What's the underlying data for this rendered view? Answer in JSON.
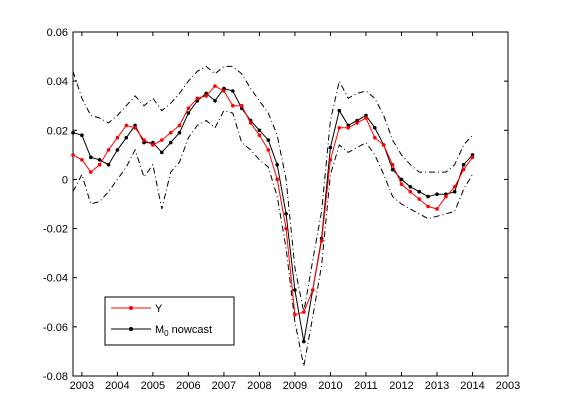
{
  "chart_data": {
    "type": "line",
    "title": "",
    "xlabel": "",
    "ylabel": "",
    "xlim": [
      2002.75,
      2003.4
    ],
    "xlim_note": "",
    "x_range": [
      2002.75,
      2015.0
    ],
    "y_range": [
      -0.08,
      0.06
    ],
    "x_ticks": [
      "2003",
      "2004",
      "2005",
      "2006",
      "2007",
      "2008",
      "2009",
      "2010",
      "2011",
      "2012",
      "2013",
      "2014",
      "2003"
    ],
    "y_ticks": [
      "0.06",
      "0.04",
      "0.02",
      "0",
      "-0.02",
      "-0.04",
      "-0.06",
      "-0.08"
    ],
    "grid": false,
    "legend_position": "bottom-left",
    "colors": {
      "y_series": "#ff0000",
      "nowcast": "#000000",
      "bands": "#000000"
    },
    "series": [
      {
        "name": "Y",
        "values": [
          0.01,
          0.008,
          0.003,
          0.006,
          0.012,
          0.017,
          0.022,
          0.021,
          0.016,
          0.014,
          0.016,
          0.019,
          0.022,
          0.029,
          0.033,
          0.034,
          0.038,
          0.036,
          0.03,
          0.03,
          0.023,
          0.018,
          0.012,
          0.0,
          -0.02,
          -0.055,
          -0.054,
          -0.045,
          -0.025,
          0.008,
          0.021,
          0.021,
          0.023,
          0.025,
          0.017,
          0.014,
          0.006,
          -0.002,
          -0.005,
          -0.008,
          -0.011,
          -0.012,
          -0.007,
          -0.003,
          0.004,
          0.009
        ]
      },
      {
        "name": "M0 nowcast",
        "values": [
          0.019,
          0.018,
          0.009,
          0.008,
          0.006,
          0.012,
          0.017,
          0.022,
          0.015,
          0.015,
          0.011,
          0.015,
          0.019,
          0.027,
          0.032,
          0.035,
          0.032,
          0.037,
          0.036,
          0.029,
          0.024,
          0.02,
          0.016,
          0.006,
          -0.014,
          -0.045,
          -0.066,
          -0.045,
          -0.024,
          0.013,
          0.028,
          0.022,
          0.024,
          0.026,
          0.021,
          0.014,
          0.004,
          0.0,
          -0.003,
          -0.005,
          -0.007,
          -0.006,
          -0.006,
          -0.005,
          0.006,
          0.01
        ]
      },
      {
        "name": "upper band",
        "values": [
          0.044,
          0.033,
          0.026,
          0.025,
          0.023,
          0.026,
          0.03,
          0.034,
          0.03,
          0.033,
          0.028,
          0.031,
          0.035,
          0.04,
          0.044,
          0.046,
          0.043,
          0.046,
          0.046,
          0.043,
          0.037,
          0.032,
          0.027,
          0.018,
          0.0,
          -0.036,
          -0.054,
          -0.033,
          -0.013,
          0.024,
          0.04,
          0.033,
          0.035,
          0.036,
          0.033,
          0.026,
          0.016,
          0.01,
          0.006,
          0.003,
          0.003,
          0.003,
          0.003,
          0.006,
          0.014,
          0.018
        ]
      },
      {
        "name": "lower band",
        "values": [
          -0.005,
          0.002,
          -0.01,
          -0.009,
          -0.005,
          0.0,
          0.005,
          0.012,
          0.001,
          0.006,
          -0.012,
          0.003,
          0.007,
          0.017,
          0.022,
          0.024,
          0.021,
          0.028,
          0.027,
          0.015,
          0.012,
          0.008,
          0.005,
          -0.007,
          -0.028,
          -0.058,
          -0.076,
          -0.056,
          -0.035,
          0.002,
          0.014,
          0.011,
          0.013,
          0.015,
          0.01,
          0.002,
          -0.007,
          -0.01,
          -0.012,
          -0.014,
          -0.016,
          -0.015,
          -0.014,
          -0.013,
          -0.004,
          0.002
        ]
      }
    ],
    "x_start": 2002.75,
    "x_step": 0.25
  },
  "legend": {
    "y_label": "Y",
    "m0_label_main": "M",
    "m0_label_sub": "0",
    "m0_label_rest": " nowcast"
  }
}
